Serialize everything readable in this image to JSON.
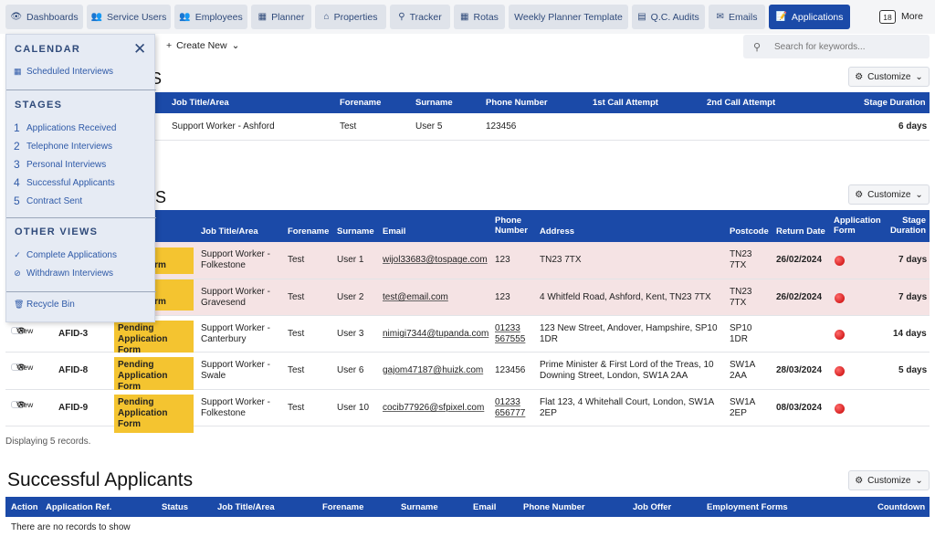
{
  "nav": [
    {
      "label": "Dashboards",
      "icon": "eye-icon"
    },
    {
      "label": "Service Users",
      "icon": "users-icon"
    },
    {
      "label": "Employees",
      "icon": "people-icon"
    },
    {
      "label": "Planner",
      "icon": "calendar-icon"
    },
    {
      "label": "Properties",
      "icon": "home-icon"
    },
    {
      "label": "Tracker",
      "icon": "search-icon"
    },
    {
      "label": "Rotas",
      "icon": "grid-calendar-icon"
    },
    {
      "label": "Weekly Planner Template",
      "icon": ""
    },
    {
      "label": "Q.C. Audits",
      "icon": "clipboard-icon"
    },
    {
      "label": "Emails",
      "icon": "envelope-icon"
    },
    {
      "label": "Applications",
      "icon": "document-icon",
      "active": true
    }
  ],
  "more": {
    "count": "18",
    "label": "More"
  },
  "toolbar": {
    "create_new": "Create New",
    "search_placeholder": "Search for keywords..."
  },
  "customize_label": "Customize",
  "sidebar": {
    "calendar_heading": "CALENDAR",
    "scheduled": "Scheduled Interviews",
    "stages_heading": "STAGES",
    "stages": [
      {
        "num": "1",
        "label": "Applications Received"
      },
      {
        "num": "2",
        "label": "Telephone Interviews"
      },
      {
        "num": "3",
        "label": "Personal Interviews"
      },
      {
        "num": "4",
        "label": "Successful Applicants"
      },
      {
        "num": "5",
        "label": "Contract Sent"
      }
    ],
    "other_heading": "OTHER VIEWS",
    "complete": "Complete Applications",
    "withdrawn": "Withdrawn Interviews",
    "recycle": "Recycle Bin"
  },
  "section1": {
    "title_fragment": "WS",
    "headers": [
      "Job Title/Area",
      "Forename",
      "Surname",
      "Phone Number",
      "1st Call Attempt",
      "2nd Call Attempt",
      "Stage Duration"
    ],
    "row": {
      "job": "Support Worker - Ashford",
      "forename": "Test",
      "surname": "User 5",
      "phone": "123456",
      "duration": "6 days"
    }
  },
  "section2": {
    "title_fragment": "S",
    "headers": {
      "job": "Job Title/Area",
      "forename": "Forename",
      "surname": "Surname",
      "email": "Email",
      "phone": "Phone Number",
      "address": "Address",
      "postcode": "Postcode",
      "return": "Return Date",
      "appform": "Application Form",
      "duration": "Stage Duration"
    },
    "rows": [
      {
        "action": "",
        "id": "",
        "status": "Pending Application Form",
        "status_visible": "n Form",
        "job": "Support Worker - Folkestone",
        "forename": "Test",
        "surname": "User 1",
        "email": "wijol33683@tospage.com",
        "phone": "123",
        "address": "TN23 7TX",
        "postcode": "TN23 7TX",
        "return": "26/02/2024",
        "duration": "7 days",
        "highlight": true
      },
      {
        "action": "",
        "id": "",
        "status": "Pending Application Form",
        "status_visible": "n Form",
        "job": "Support Worker - Gravesend",
        "forename": "Test",
        "surname": "User 2",
        "email": "test@email.com",
        "phone": "123",
        "address": "4 Whitfeld Road, Ashford, Kent, TN23 7TX",
        "postcode": "TN23 7TX",
        "return": "26/02/2024",
        "duration": "7 days",
        "highlight": true
      },
      {
        "action": "View",
        "id": "AFID-3",
        "status": "Pending Application Form",
        "job": "Support Worker - Canterbury",
        "forename": "Test",
        "surname": "User 3",
        "email": "nimigi7344@tupanda.com",
        "phone": "01233 567555",
        "address": "123 New Street, Andover, Hampshire, SP10 1DR",
        "postcode": "SP10 1DR",
        "return": "",
        "duration": "14 days",
        "highlight": false
      },
      {
        "action": "View",
        "id": "AFID-8",
        "status": "Pending Application Form",
        "job": "Support Worker - Swale",
        "forename": "Test",
        "surname": "User 6",
        "email": "gajom47187@huizk.com",
        "phone": "123456",
        "address": "Prime Minister & First Lord of the Treas, 10 Downing Street, London, SW1A 2AA",
        "postcode": "SW1A 2AA",
        "return": "28/03/2024",
        "duration": "5 days",
        "highlight": false
      },
      {
        "action": "View",
        "id": "AFID-9",
        "status": "Pending Application Form",
        "job": "Support Worker - Folkestone",
        "forename": "Test",
        "surname": "User 10",
        "email": "cocib77926@sfpixel.com",
        "phone": "01233 656777",
        "address": "Flat 123, 4 Whitehall Court, London, SW1A 2EP",
        "postcode": "SW1A 2EP",
        "return": "08/03/2024",
        "duration": "",
        "highlight": false
      }
    ],
    "footer": "Displaying 5 records."
  },
  "section3": {
    "title": "Successful Applicants",
    "headers": [
      "Action",
      "Application Ref.",
      "Status",
      "Job Title/Area",
      "Forename",
      "Surname",
      "Email",
      "Phone Number",
      "Job Offer",
      "Employment Forms",
      "Countdown"
    ],
    "empty": "There are no records to show"
  }
}
